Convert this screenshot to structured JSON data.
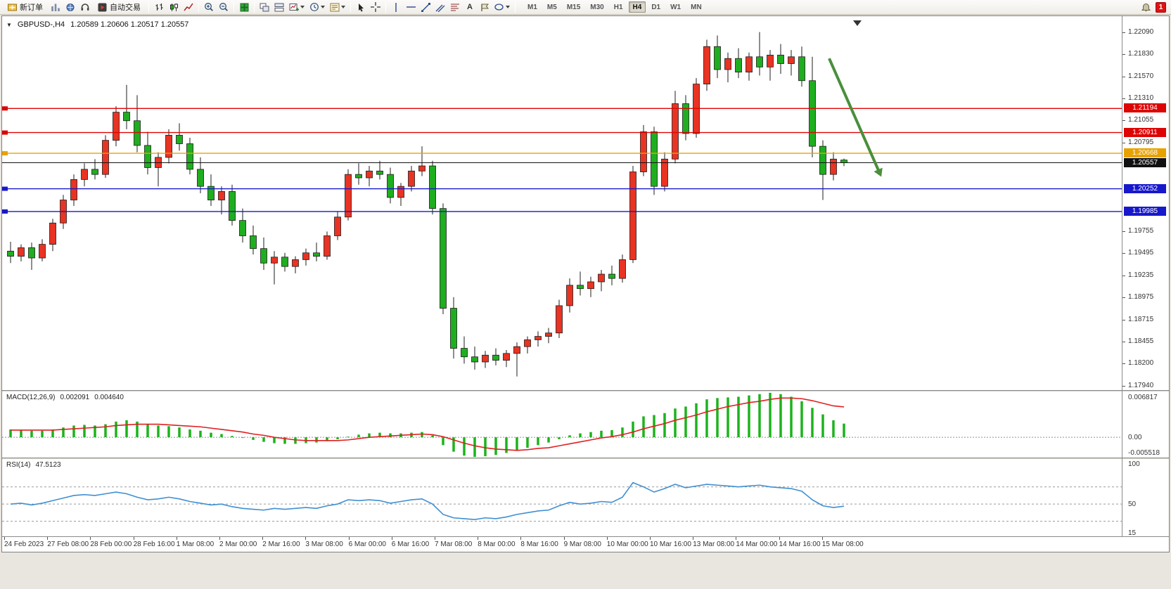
{
  "toolbar": {
    "buttons": {
      "new_order": "新订单",
      "auto_trading": "自动交易"
    },
    "text_tool_label": "A",
    "timeframes": [
      "M1",
      "M5",
      "M15",
      "M30",
      "H1",
      "H4",
      "D1",
      "W1",
      "MN"
    ],
    "active_timeframe": "H4",
    "notification_badge": "1"
  },
  "chart": {
    "title": "GBPUSD-,H4",
    "ohlc_text": "1.20589 1.20606 1.20517 1.20557",
    "macd_name": "MACD(12,26,9)",
    "macd_value1": "0.002091",
    "macd_value2": "0.004640",
    "rsi_name": "RSI(14)",
    "rsi_value": "47.5123"
  },
  "price_axis": {
    "ticks": [
      "1.22090",
      "1.21830",
      "1.21570",
      "1.21310",
      "1.21055",
      "1.20795",
      "1.19755",
      "1.19495",
      "1.19235",
      "1.18975",
      "1.18715",
      "1.18455",
      "1.18200",
      "1.17940"
    ],
    "tick_values": [
      1.2209,
      1.2183,
      1.2157,
      1.2131,
      1.21055,
      1.20795,
      1.19755,
      1.19495,
      1.19235,
      1.18975,
      1.18715,
      1.18455,
      1.182,
      1.1794
    ]
  },
  "macd_axis": {
    "max": "0.006817",
    "zero": "0.00",
    "min": "-0.005518"
  },
  "rsi_axis": {
    "top": "100",
    "mid": "50",
    "bottom": "15"
  },
  "time_axis": [
    "24 Feb 2023",
    "27 Feb 08:00",
    "28 Feb 00:00",
    "28 Feb 16:00",
    "1 Mar 08:00",
    "2 Mar 00:00",
    "2 Mar 16:00",
    "3 Mar 08:00",
    "6 Mar 00:00",
    "6 Mar 16:00",
    "7 Mar 08:00",
    "8 Mar 00:00",
    "8 Mar 16:00",
    "9 Mar 08:00",
    "10 Mar 00:00",
    "10 Mar 16:00",
    "13 Mar 08:00",
    "14 Mar 00:00",
    "14 Mar 16:00",
    "15 Mar 08:00"
  ],
  "levels": [
    {
      "price": 1.21194,
      "label": "1.21194",
      "color": "#dd0404",
      "type": "line"
    },
    {
      "price": 1.20911,
      "label": "1.20911",
      "color": "#dd0404",
      "type": "line"
    },
    {
      "price": 1.20668,
      "label": "1.20668",
      "color": "#e8a200",
      "type": "line"
    },
    {
      "price": 1.20557,
      "label": "1.20557",
      "color": "#111111",
      "type": "price"
    },
    {
      "price": 1.20252,
      "label": "1.20252",
      "color": "#1717cc",
      "type": "line"
    },
    {
      "price": 1.19985,
      "label": "1.19985",
      "color": "#1717cc",
      "type": "line"
    }
  ],
  "annotation_arrow": {
    "color": "#4a8f3c",
    "from_index": 77.6,
    "from_price": 1.2178,
    "to_index": 82.3,
    "to_price": 1.2046
  },
  "chart_data": {
    "type": "candlestick",
    "symbol": "GBPUSD",
    "timeframe": "H4",
    "up_color": "#e93323",
    "down_color": "#1fae1f",
    "wick_color": "#1c1c1c",
    "y_range_main": [
      1.1789,
      1.2226
    ],
    "candles_ohlc": [
      [
        1.1952,
        1.1963,
        1.1938,
        1.1946
      ],
      [
        1.1946,
        1.196,
        1.194,
        1.1956
      ],
      [
        1.1956,
        1.1962,
        1.193,
        1.1944
      ],
      [
        1.1944,
        1.1966,
        1.194,
        1.196
      ],
      [
        1.196,
        1.199,
        1.1952,
        1.1985
      ],
      [
        1.1985,
        1.2018,
        1.1978,
        1.2012
      ],
      [
        1.2012,
        1.2042,
        1.2005,
        1.2036
      ],
      [
        1.2036,
        1.2055,
        1.2028,
        1.2048
      ],
      [
        1.2048,
        1.206,
        1.2036,
        1.2042
      ],
      [
        1.2042,
        1.2088,
        1.2038,
        1.2082
      ],
      [
        1.2082,
        1.2122,
        1.2075,
        1.2115
      ],
      [
        1.2115,
        1.2147,
        1.2095,
        1.2105
      ],
      [
        1.2105,
        1.2135,
        1.2068,
        1.2076
      ],
      [
        1.2076,
        1.2092,
        1.2042,
        1.205
      ],
      [
        1.205,
        1.2068,
        1.2028,
        1.2062
      ],
      [
        1.2062,
        1.2095,
        1.2055,
        1.2088
      ],
      [
        1.2088,
        1.2102,
        1.207,
        1.2078
      ],
      [
        1.2078,
        1.2085,
        1.2042,
        1.2048
      ],
      [
        1.2048,
        1.2062,
        1.202,
        1.2028
      ],
      [
        1.2028,
        1.2042,
        1.2005,
        1.2012
      ],
      [
        1.2012,
        1.2028,
        1.1995,
        1.2022
      ],
      [
        1.2022,
        1.203,
        1.1982,
        1.1988
      ],
      [
        1.1988,
        1.2002,
        1.1962,
        1.197
      ],
      [
        1.197,
        1.1982,
        1.1948,
        1.1955
      ],
      [
        1.1955,
        1.1968,
        1.193,
        1.1938
      ],
      [
        1.1938,
        1.1952,
        1.1913,
        1.1945
      ],
      [
        1.1945,
        1.195,
        1.1928,
        1.1934
      ],
      [
        1.1934,
        1.1946,
        1.1926,
        1.1942
      ],
      [
        1.1942,
        1.1955,
        1.1935,
        1.195
      ],
      [
        1.195,
        1.1962,
        1.194,
        1.1946
      ],
      [
        1.1946,
        1.1975,
        1.1942,
        1.197
      ],
      [
        1.197,
        1.1998,
        1.1965,
        1.1992
      ],
      [
        1.1992,
        1.2048,
        1.1988,
        1.2042
      ],
      [
        1.2042,
        1.2055,
        1.203,
        1.2038
      ],
      [
        1.2038,
        1.2052,
        1.2028,
        1.2046
      ],
      [
        1.2046,
        1.2058,
        1.2036,
        1.2042
      ],
      [
        1.2042,
        1.205,
        1.2008,
        1.2015
      ],
      [
        1.2015,
        1.2032,
        1.2005,
        1.2028
      ],
      [
        1.2028,
        1.2052,
        1.2022,
        1.2046
      ],
      [
        1.2046,
        1.2075,
        1.204,
        1.2052
      ],
      [
        1.2052,
        1.2058,
        1.1995,
        1.2002
      ],
      [
        1.2002,
        1.2008,
        1.1878,
        1.1885
      ],
      [
        1.1885,
        1.1898,
        1.1826,
        1.1838
      ],
      [
        1.1838,
        1.1852,
        1.182,
        1.1828
      ],
      [
        1.1828,
        1.184,
        1.1813,
        1.1822
      ],
      [
        1.1822,
        1.1835,
        1.1815,
        1.183
      ],
      [
        1.183,
        1.1838,
        1.1818,
        1.1824
      ],
      [
        1.1824,
        1.1836,
        1.1816,
        1.1832
      ],
      [
        1.1832,
        1.1845,
        1.1805,
        1.184
      ],
      [
        1.184,
        1.1852,
        1.1832,
        1.1848
      ],
      [
        1.1848,
        1.1858,
        1.184,
        1.1852
      ],
      [
        1.1852,
        1.1862,
        1.1844,
        1.1856
      ],
      [
        1.1856,
        1.1895,
        1.185,
        1.1888
      ],
      [
        1.1888,
        1.192,
        1.188,
        1.1912
      ],
      [
        1.1912,
        1.1928,
        1.19,
        1.1908
      ],
      [
        1.1908,
        1.1922,
        1.1898,
        1.1916
      ],
      [
        1.1916,
        1.193,
        1.1905,
        1.1925
      ],
      [
        1.1925,
        1.1935,
        1.1912,
        1.192
      ],
      [
        1.192,
        1.1948,
        1.1915,
        1.1942
      ],
      [
        1.1942,
        1.2052,
        1.1938,
        1.2045
      ],
      [
        1.2045,
        1.21,
        1.204,
        1.2092
      ],
      [
        1.2092,
        1.2098,
        1.2018,
        1.2028
      ],
      [
        1.2028,
        1.2068,
        1.2022,
        1.206
      ],
      [
        1.206,
        1.214,
        1.2055,
        1.2125
      ],
      [
        1.2125,
        1.2135,
        1.2082,
        1.209
      ],
      [
        1.209,
        1.2155,
        1.2085,
        1.2148
      ],
      [
        1.2148,
        1.22,
        1.214,
        1.2192
      ],
      [
        1.2192,
        1.2205,
        1.2155,
        1.2165
      ],
      [
        1.2165,
        1.2185,
        1.215,
        1.2178
      ],
      [
        1.2178,
        1.219,
        1.2155,
        1.2162
      ],
      [
        1.2162,
        1.2185,
        1.2152,
        1.218
      ],
      [
        1.218,
        1.2209,
        1.2158,
        1.2168
      ],
      [
        1.2168,
        1.2188,
        1.2152,
        1.2182
      ],
      [
        1.2182,
        1.2195,
        1.216,
        1.2172
      ],
      [
        1.2172,
        1.2188,
        1.2158,
        1.218
      ],
      [
        1.218,
        1.2192,
        1.2145,
        1.2152
      ],
      [
        1.2152,
        1.218,
        1.2062,
        1.2075
      ],
      [
        1.2075,
        1.2082,
        1.2012,
        1.2042
      ],
      [
        1.2042,
        1.2068,
        1.2035,
        1.206
      ],
      [
        1.20589,
        1.20606,
        1.20517,
        1.20557
      ]
    ],
    "macd": {
      "params": "12,26,9",
      "histogram_color": "#1cb31c",
      "signal_color": "#e02020",
      "range": [
        -0.0031,
        0.007
      ],
      "histogram": [
        0.0012,
        0.0011,
        0.001,
        0.001,
        0.0012,
        0.0015,
        0.0018,
        0.0019,
        0.0018,
        0.002,
        0.0024,
        0.0026,
        0.0024,
        0.002,
        0.0018,
        0.0017,
        0.0015,
        0.0012,
        0.001,
        0.0007,
        0.0005,
        0.0002,
        -0.0001,
        -0.0004,
        -0.0007,
        -0.0009,
        -0.001,
        -0.001,
        -0.0009,
        -0.0008,
        -0.0006,
        -0.0003,
        0.0001,
        0.0004,
        0.0006,
        0.0007,
        0.0006,
        0.0006,
        0.0007,
        0.0008,
        0.0003,
        -0.0012,
        -0.0022,
        -0.0028,
        -0.003,
        -0.0029,
        -0.0027,
        -0.0024,
        -0.002,
        -0.0016,
        -0.0012,
        -0.0008,
        -0.0003,
        0.0003,
        0.0006,
        0.0008,
        0.001,
        0.0011,
        0.0015,
        0.0024,
        0.0032,
        0.0034,
        0.0037,
        0.0044,
        0.0047,
        0.0052,
        0.0058,
        0.006,
        0.0061,
        0.0062,
        0.0064,
        0.0066,
        0.0068,
        0.0066,
        0.0062,
        0.0055,
        0.0045,
        0.0035,
        0.0026,
        0.002091
      ],
      "signal": [
        0.0011,
        0.0011,
        0.0011,
        0.0011,
        0.0011,
        0.0012,
        0.0013,
        0.0014,
        0.0015,
        0.0016,
        0.0018,
        0.0019,
        0.002,
        0.002,
        0.002,
        0.0019,
        0.0018,
        0.0017,
        0.0016,
        0.0014,
        0.0012,
        0.001,
        0.0008,
        0.0005,
        0.0003,
        0.0,
        -0.0002,
        -0.0004,
        -0.0005,
        -0.0005,
        -0.0005,
        -0.0005,
        -0.0004,
        -0.0002,
        0.0,
        0.0001,
        0.0002,
        0.0003,
        0.0004,
        0.0005,
        0.0004,
        0.0001,
        -0.0004,
        -0.0009,
        -0.0013,
        -0.0016,
        -0.0018,
        -0.0019,
        -0.002,
        -0.0019,
        -0.0017,
        -0.0016,
        -0.0013,
        -0.001,
        -0.0007,
        -0.0004,
        -0.0001,
        0.0001,
        0.0004,
        0.0008,
        0.0013,
        0.0017,
        0.0021,
        0.0026,
        0.003,
        0.0034,
        0.0039,
        0.0043,
        0.0047,
        0.005,
        0.0053,
        0.0055,
        0.0058,
        0.006,
        0.006,
        0.0059,
        0.0056,
        0.0052,
        0.0048,
        0.00464
      ]
    },
    "rsi": {
      "period": 14,
      "line_color": "#3f8fd2",
      "range": [
        15,
        100
      ],
      "levels": [
        70,
        50,
        30
      ],
      "values": [
        50,
        51,
        49,
        51,
        54,
        57,
        60,
        61,
        60,
        62,
        64,
        62,
        58,
        55,
        56,
        58,
        56,
        53,
        51,
        49,
        50,
        47,
        45,
        44,
        43,
        45,
        44,
        45,
        46,
        45,
        48,
        50,
        55,
        54,
        55,
        54,
        51,
        53,
        55,
        56,
        50,
        38,
        34,
        33,
        32,
        34,
        33,
        35,
        38,
        40,
        42,
        43,
        48,
        52,
        50,
        51,
        53,
        52,
        58,
        75,
        70,
        64,
        68,
        73,
        69,
        71,
        73,
        72,
        71,
        70,
        71,
        72,
        70,
        69,
        68,
        65,
        55,
        48,
        46,
        47.5123
      ]
    }
  }
}
